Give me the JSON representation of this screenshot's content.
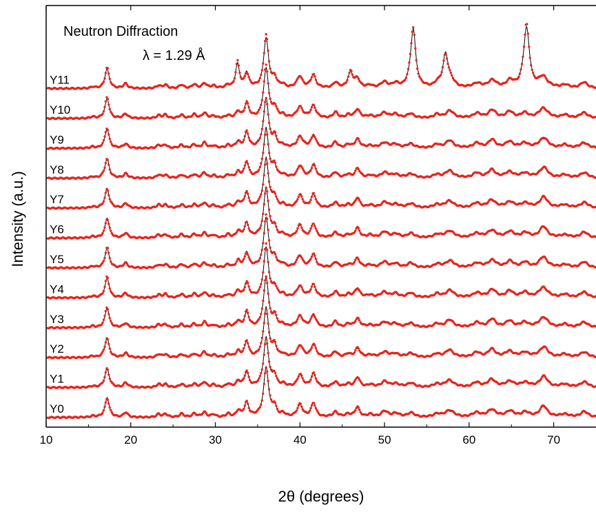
{
  "chart_data": {
    "type": "line",
    "title": "",
    "xlabel": "2θ (degrees)",
    "ylabel": "Intensity (a.u.)",
    "xlim": [
      10,
      75
    ],
    "xticks": [
      10,
      20,
      30,
      40,
      50,
      60,
      70
    ],
    "yticks": [],
    "grid": false,
    "legend": "none",
    "annotations": [
      "Neutron Diffraction",
      "λ = 1.29 Å"
    ],
    "colors": {
      "observed": "#e8231c",
      "calculated": "#000000",
      "frame": "#000000"
    },
    "series_labels": [
      "Y11",
      "Y10",
      "Y9",
      "Y8",
      "Y7",
      "Y6",
      "Y5",
      "Y4",
      "Y3",
      "Y2",
      "Y1",
      "Y0"
    ],
    "peaks": [
      {
        "x": 15.5,
        "h": 0.22,
        "w": 0.28
      },
      {
        "x": 17.2,
        "h": 3.2,
        "w": 0.3
      },
      {
        "x": 19.4,
        "h": 0.75,
        "w": 0.3
      },
      {
        "x": 23.3,
        "h": 0.5,
        "w": 0.28
      },
      {
        "x": 24.1,
        "h": 0.55,
        "w": 0.28
      },
      {
        "x": 26.0,
        "h": 0.55,
        "w": 0.3
      },
      {
        "x": 27.5,
        "h": 0.6,
        "w": 0.3
      },
      {
        "x": 28.7,
        "h": 0.85,
        "w": 0.3
      },
      {
        "x": 29.8,
        "h": 0.4,
        "w": 0.3
      },
      {
        "x": 31.5,
        "h": 0.5,
        "w": 0.28
      },
      {
        "x": 32.7,
        "h": 1.0,
        "w": 0.3
      },
      {
        "x": 33.7,
        "h": 2.4,
        "w": 0.3
      },
      {
        "x": 36.0,
        "h": 8.0,
        "w": 0.35
      },
      {
        "x": 37.0,
        "h": 1.6,
        "w": 0.3
      },
      {
        "x": 38.0,
        "h": 0.45,
        "w": 0.3
      },
      {
        "x": 40.0,
        "h": 1.9,
        "w": 0.4
      },
      {
        "x": 41.6,
        "h": 2.1,
        "w": 0.35
      },
      {
        "x": 44.2,
        "h": 0.9,
        "w": 0.35
      },
      {
        "x": 45.7,
        "h": 0.5,
        "w": 0.35
      },
      {
        "x": 46.8,
        "h": 1.5,
        "w": 0.35
      },
      {
        "x": 48.3,
        "h": 0.4,
        "w": 0.4
      },
      {
        "x": 50.0,
        "h": 0.9,
        "w": 0.5
      },
      {
        "x": 51.3,
        "h": 0.6,
        "w": 0.5
      },
      {
        "x": 53.1,
        "h": 0.7,
        "w": 0.5
      },
      {
        "x": 56.2,
        "h": 0.55,
        "w": 0.45
      },
      {
        "x": 57.7,
        "h": 1.15,
        "w": 0.6
      },
      {
        "x": 60.9,
        "h": 0.75,
        "w": 0.55
      },
      {
        "x": 62.7,
        "h": 1.25,
        "w": 0.55
      },
      {
        "x": 64.8,
        "h": 1.0,
        "w": 0.55
      },
      {
        "x": 66.6,
        "h": 0.8,
        "w": 0.55
      },
      {
        "x": 68.8,
        "h": 1.7,
        "w": 0.6
      },
      {
        "x": 71.3,
        "h": 0.5,
        "w": 0.55
      },
      {
        "x": 73.6,
        "h": 0.9,
        "w": 0.55
      }
    ],
    "y11_extra_peaks": [
      {
        "x": 32.6,
        "h": 3.0,
        "w": 0.25
      },
      {
        "x": 46.0,
        "h": 2.2,
        "w": 0.3
      },
      {
        "x": 53.4,
        "h": 9.0,
        "w": 0.35
      },
      {
        "x": 57.2,
        "h": 5.0,
        "w": 0.35
      },
      {
        "x": 66.8,
        "h": 9.0,
        "w": 0.4
      }
    ]
  }
}
